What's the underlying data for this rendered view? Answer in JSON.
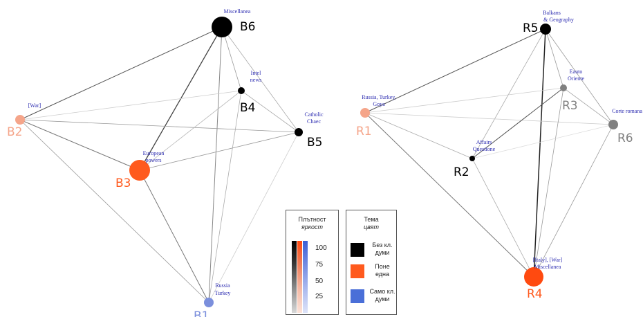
{
  "left_network": {
    "nodes": [
      {
        "id": "B6",
        "label": "Miscellanea",
        "color": "#000000"
      },
      {
        "id": "B4",
        "label": "Intel news",
        "color": "#000000"
      },
      {
        "id": "B5",
        "label": "Catholic Chaec",
        "color": "#000000"
      },
      {
        "id": "B2",
        "label": "[War]",
        "color": "#f5a58a"
      },
      {
        "id": "B3",
        "label": "European powers",
        "color": "#ff5a1e"
      },
      {
        "id": "B1",
        "label": "Russia Turkey",
        "color": "#7b8fdc"
      }
    ]
  },
  "right_network": {
    "nodes": [
      {
        "id": "R5",
        "label": "Balkans & Geography",
        "color": "#000000"
      },
      {
        "id": "R3",
        "label": "Eauto Oriente",
        "color": "#808080"
      },
      {
        "id": "R1",
        "label": "Russia, Turkey, Goya",
        "color": "#f5a58a"
      },
      {
        "id": "R6",
        "label": "Corte romana",
        "color": "#808080"
      },
      {
        "id": "R2",
        "label": "Affairs Questione",
        "color": "#000000"
      },
      {
        "id": "R4",
        "label": "[Italy], [War] Miscellanea",
        "color": "#ff4a10"
      }
    ]
  },
  "legend": {
    "density_title": "Плътност",
    "density_subtitle": "яркост",
    "ticks": [
      "100",
      "75",
      "50",
      "25"
    ],
    "topic_title": "Тема",
    "topic_subtitle": "цвят",
    "topics": [
      {
        "label": "Без кл. думи",
        "color": "#000000"
      },
      {
        "label": "Поне една",
        "color": "#ff5a1e"
      },
      {
        "label": "Само кл. думи",
        "color": "#4a6fd8"
      }
    ]
  }
}
